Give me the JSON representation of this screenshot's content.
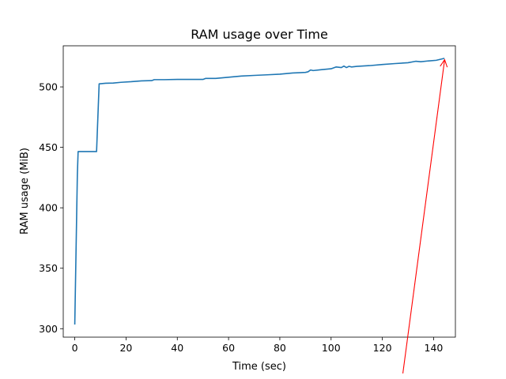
{
  "chart_data": {
    "type": "line",
    "title": "RAM usage over Time",
    "xlabel": "Time (sec)",
    "ylabel": "RAM usage (MiB)",
    "xlim": [
      -4.5,
      148.5
    ],
    "ylim": [
      293,
      534
    ],
    "xticks": [
      0,
      20,
      40,
      60,
      80,
      100,
      120,
      140
    ],
    "yticks": [
      300,
      350,
      400,
      450,
      500
    ],
    "grid": false,
    "series": [
      {
        "color": "#1f77b4",
        "x": [
          0,
          1,
          1.3,
          8.5,
          9.5,
          12,
          15,
          18,
          22,
          26,
          30,
          31,
          35,
          40,
          45,
          50,
          51,
          55,
          60,
          65,
          70,
          75,
          80,
          85,
          90,
          91,
          92,
          93,
          96,
          100,
          102,
          104,
          105,
          106,
          107,
          108,
          110,
          115,
          120,
          125,
          130,
          133,
          135,
          138,
          141,
          144
        ],
        "values": [
          304,
          427,
          446.5,
          446.5,
          502.5,
          503,
          503.2,
          503.8,
          504.3,
          505,
          505.2,
          506,
          506,
          506.2,
          506.2,
          506.2,
          507,
          507,
          508,
          509,
          509.5,
          510,
          510.5,
          511.5,
          512,
          512.5,
          514,
          513.5,
          514.2,
          515,
          516.5,
          516,
          517.2,
          516,
          517,
          516.5,
          517,
          517.6,
          518.5,
          519.3,
          520,
          521.2,
          520.8,
          521.5,
          522,
          523.5
        ]
      }
    ],
    "annotation": {
      "type": "arrow",
      "color": "#ff0000",
      "from": [
        128,
        263
      ],
      "to": [
        144.3,
        522.5
      ]
    }
  }
}
